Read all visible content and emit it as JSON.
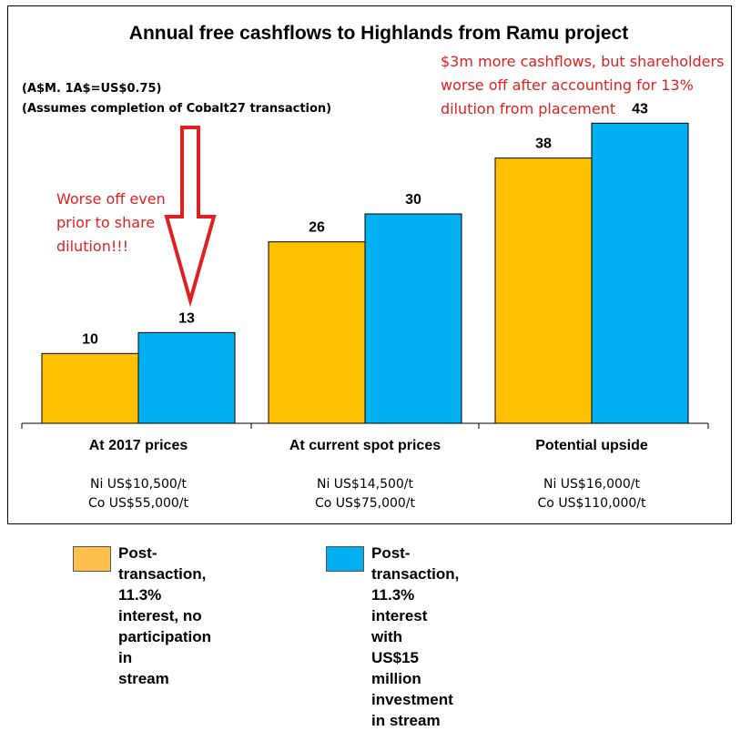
{
  "chart_data": {
    "type": "bar",
    "title": "Annual free cashflows to Highlands from Ramu project",
    "subtitle_lines": [
      "(A$M. 1A$=US$0.75)",
      "(Assumes completion of Cobalt27 transaction)"
    ],
    "categories": [
      "At 2017 prices",
      "At current spot prices",
      "Potential upside"
    ],
    "category_price_notes": [
      [
        "Ni US$10,500/t",
        "Co US$55,000/t"
      ],
      [
        "Ni US$14,500/t",
        "Co US$75,000/t"
      ],
      [
        "Ni US$16,000/t",
        "Co US$110,000/t"
      ]
    ],
    "series": [
      {
        "name": "Post-transaction, 11.3% interest, no participation in stream",
        "values": [
          10,
          26,
          38
        ],
        "color": "#FFC000"
      },
      {
        "name": "Post-transaction, 11.3% interest with US$15 million investment in stream",
        "values": [
          13,
          30,
          43
        ],
        "color": "#00B0F0"
      }
    ],
    "data_labels": [
      "10",
      "26",
      "38",
      "13",
      "30",
      "43"
    ],
    "ylim": [
      0,
      45
    ],
    "grid": false,
    "legend_position": "bottom",
    "annotations": [
      {
        "lines": [
          "Worse off even",
          "prior to share",
          "dilution!!!"
        ],
        "color": "#e02020"
      },
      {
        "lines": [
          "$3m more cashflows, but shareholders",
          "worse off after accounting for 13%",
          "dilution from placement"
        ],
        "color": "#e02020"
      }
    ]
  },
  "legend": {
    "items": [
      {
        "text": "Post-transaction,\n11.3% interest, no\nparticipation in\nstream",
        "color": "#FFBF4D"
      },
      {
        "text": "Post-transaction,\n11.3% interest with\nUS$15 million\ninvestment in stream",
        "color": "#00B0F0"
      }
    ]
  }
}
